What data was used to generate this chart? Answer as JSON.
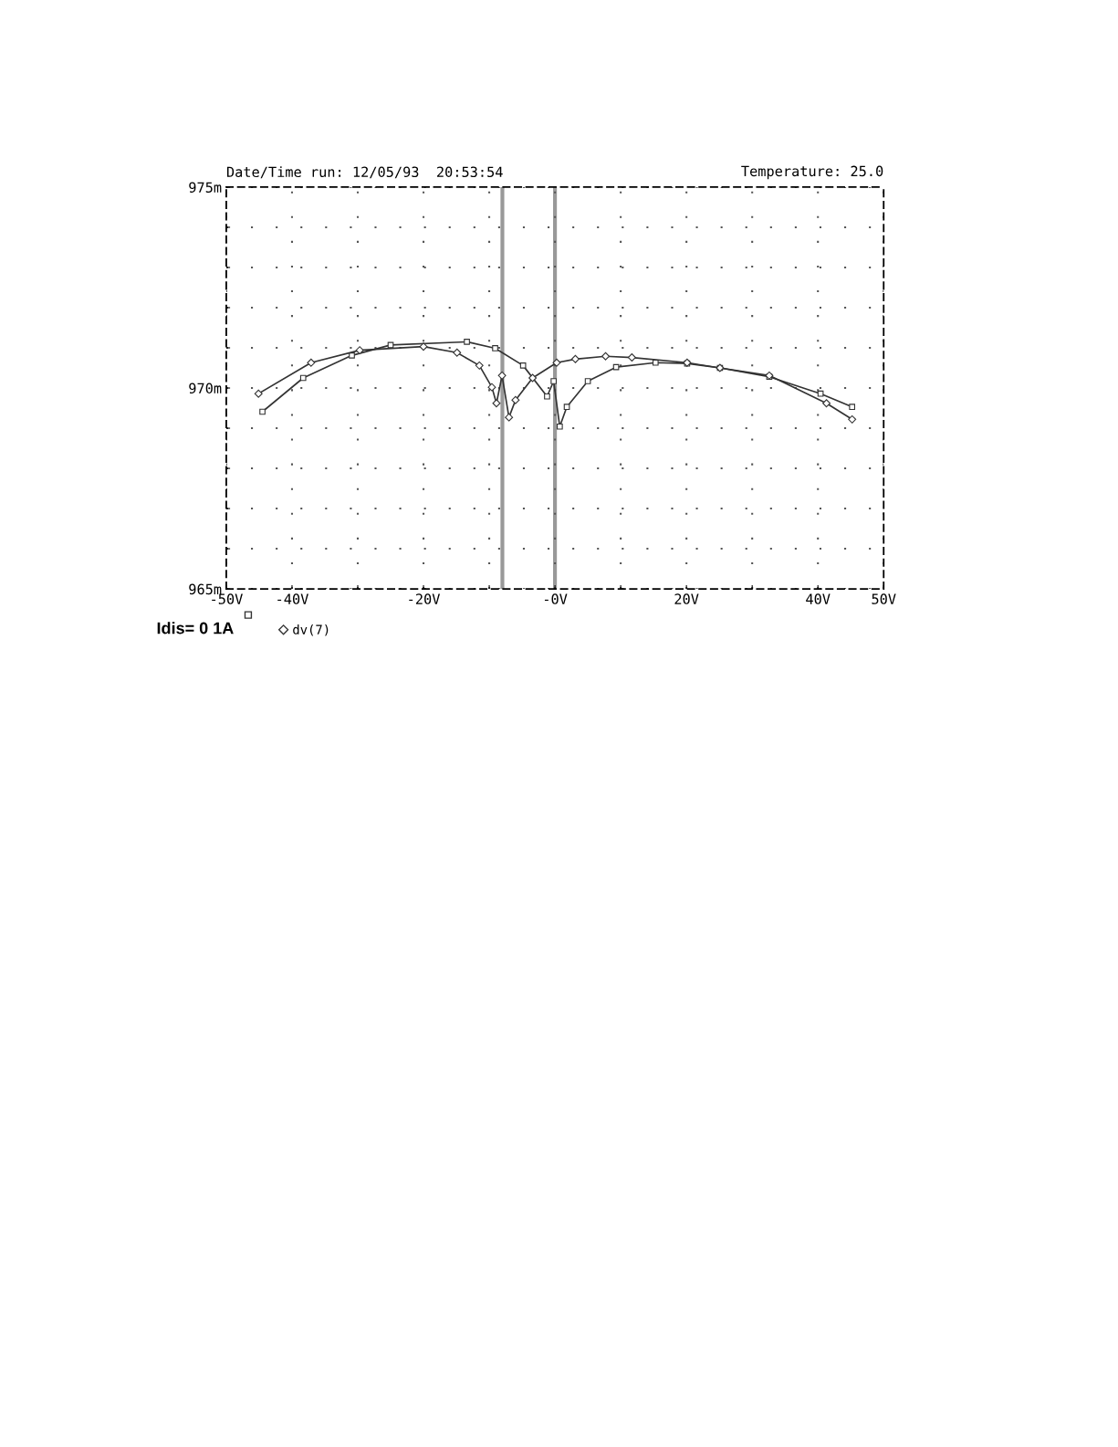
{
  "chart_data": {
    "type": "line",
    "title": "Date/Time run: 12/05/93  20:53:54",
    "annotations": [
      "Temperature: 25.0",
      "Idis= 0 1A"
    ],
    "xlim": [
      -50,
      50
    ],
    "xticks": [
      {
        "value": -50,
        "label": "-50V"
      },
      {
        "value": -40,
        "label": "-40V"
      },
      {
        "value": -30,
        "label": null
      },
      {
        "value": -20,
        "label": "-20V"
      },
      {
        "value": -10,
        "label": null
      },
      {
        "value": 0,
        "label": "-0V"
      },
      {
        "value": 10,
        "label": null
      },
      {
        "value": 20,
        "label": "20V"
      },
      {
        "value": 30,
        "label": null
      },
      {
        "value": 40,
        "label": "40V"
      },
      {
        "value": 50,
        "label": "50V"
      }
    ],
    "ylim": [
      965,
      975
    ],
    "yticks": [
      {
        "value": 965,
        "label": "965m"
      },
      {
        "value": 966,
        "label": null
      },
      {
        "value": 967,
        "label": null
      },
      {
        "value": 968,
        "label": null
      },
      {
        "value": 969,
        "label": null
      },
      {
        "value": 970,
        "label": "970m"
      },
      {
        "value": 971,
        "label": null
      },
      {
        "value": 972,
        "label": null
      },
      {
        "value": 973,
        "label": null
      },
      {
        "value": 974,
        "label": null
      },
      {
        "value": 975,
        "label": "975m"
      }
    ],
    "grid": true,
    "legend": "bottom left",
    "series": [
      {
        "color": "#333333",
        "marker": "square",
        "x": [
          -44.5,
          -38.3,
          -30.9,
          -25.0,
          -13.4,
          -9.1,
          -4.85,
          -1.2,
          -0.2,
          0.73,
          1.8,
          5.0,
          9.3,
          15.3,
          20.1,
          25.1,
          32.6,
          40.4,
          45.2
        ],
        "values": [
          969.41,
          970.25,
          970.81,
          971.07,
          971.15,
          970.99,
          970.56,
          969.79,
          970.17,
          969.04,
          969.53,
          970.17,
          970.52,
          970.63,
          970.61,
          970.5,
          970.28,
          969.86,
          969.53
        ]
      },
      {
        "name": "dv(7)",
        "color": "#333333",
        "marker": "diamond",
        "x": [
          -45.1,
          -37.1,
          -29.7,
          -20.0,
          -14.9,
          -11.5,
          -9.6,
          -8.9,
          -8.05,
          -7.0,
          -6.0,
          -3.4,
          0.26,
          3.1,
          7.7,
          11.7,
          20.1,
          25.1,
          32.6,
          41.3,
          45.2
        ],
        "values": [
          969.86,
          970.63,
          970.94,
          971.03,
          970.88,
          970.56,
          970.02,
          969.62,
          970.31,
          969.27,
          969.7,
          970.25,
          970.63,
          970.72,
          970.79,
          970.76,
          970.63,
          970.5,
          970.31,
          969.62,
          969.22
        ]
      }
    ],
    "ref_lines": [
      {
        "axis": "x",
        "value": -8,
        "color": "#999999"
      },
      {
        "axis": "x",
        "value": 0,
        "color": "#999999"
      }
    ]
  }
}
